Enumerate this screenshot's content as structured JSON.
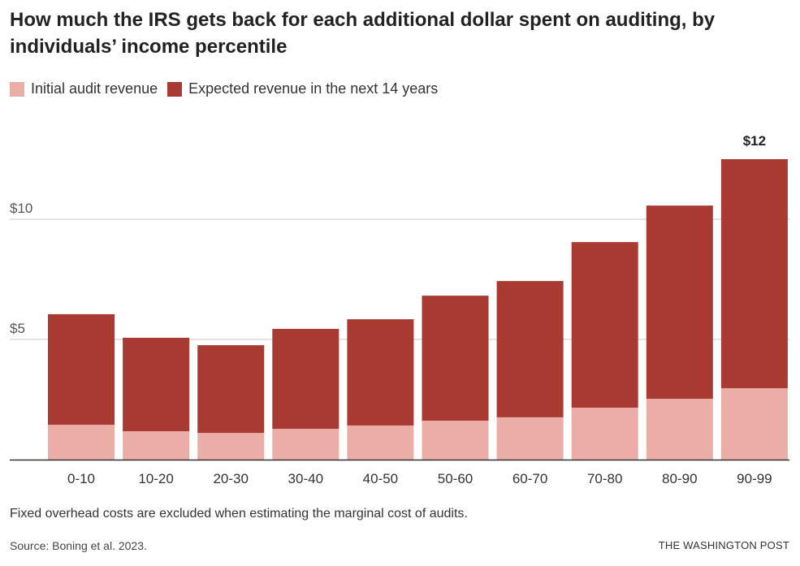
{
  "chart_data": {
    "type": "bar",
    "stacked": true,
    "title": "How much the IRS gets back for each additional dollar spent on auditing, by individuals’ income percentile",
    "categories": [
      "0-10",
      "10-20",
      "20-30",
      "30-40",
      "40-50",
      "50-60",
      "60-70",
      "70-80",
      "80-90",
      "90-99"
    ],
    "series": [
      {
        "name": "Initial audit revenue",
        "color": "#ebaea7",
        "values": [
          1.45,
          1.18,
          1.11,
          1.28,
          1.42,
          1.62,
          1.76,
          2.16,
          2.53,
          2.97
        ]
      },
      {
        "name": "Expected revenue in the next 14 years",
        "color": "#a93a31",
        "values": [
          4.6,
          3.89,
          3.65,
          4.16,
          4.42,
          5.2,
          5.67,
          6.89,
          8.04,
          9.53
        ]
      }
    ],
    "yticks": [
      {
        "value": 5,
        "label": "$5"
      },
      {
        "value": 10,
        "label": "$10"
      }
    ],
    "ylim": [
      0,
      12.5
    ],
    "grid": true,
    "legend": "top-left",
    "annotation": {
      "category": "90-99",
      "label": "$12"
    },
    "note": "Fixed overhead costs are excluded when estimating the marginal cost of audits.",
    "source": "Source: Boning et al. 2023.",
    "credit": "THE WASHINGTON POST"
  }
}
